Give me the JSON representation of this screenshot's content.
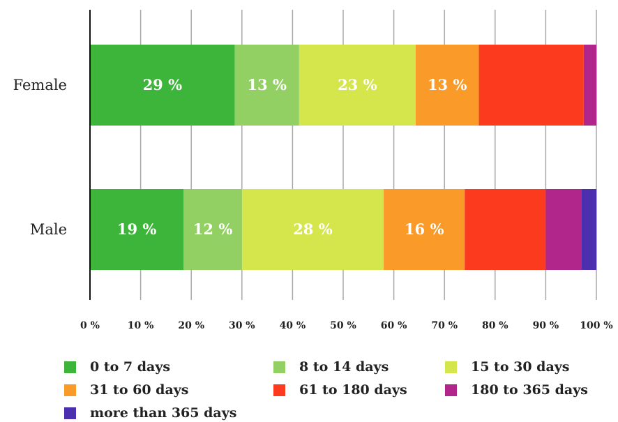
{
  "chart_data": {
    "type": "bar",
    "orientation": "horizontal",
    "stacked": true,
    "title": "",
    "xlabel": "",
    "ylabel": "",
    "xlim": [
      0,
      100
    ],
    "x_ticks": [
      "0 %",
      "10 %",
      "20 %",
      "30 %",
      "40 %",
      "50 %",
      "60 %",
      "70 %",
      "80 %",
      "90 %",
      "100 %"
    ],
    "categories": [
      "Female",
      "Male"
    ],
    "series": [
      {
        "name": "0 to 7 days",
        "color": "#3db53a",
        "values": [
          28.6,
          18.5
        ],
        "labels": [
          "29 %",
          "19 %"
        ]
      },
      {
        "name": "8 to 14 days",
        "color": "#93d064",
        "values": [
          12.7,
          11.5
        ],
        "labels": [
          "13 %",
          "12 %"
        ]
      },
      {
        "name": "15 to 30 days",
        "color": "#d4e64b",
        "values": [
          23.0,
          28.0
        ],
        "labels": [
          "23 %",
          "28 %"
        ]
      },
      {
        "name": "31 to 60 days",
        "color": "#f99a29",
        "values": [
          12.5,
          16.0
        ],
        "labels": [
          "13 %",
          "16 %"
        ]
      },
      {
        "name": "61 to 180 days",
        "color": "#fb3a1e",
        "values": [
          20.7,
          16.0
        ],
        "labels": [
          "",
          ""
        ]
      },
      {
        "name": "180 to 365 days",
        "color": "#b0268a",
        "values": [
          2.5,
          7.0
        ],
        "labels": [
          "",
          ""
        ]
      },
      {
        "name": "more than 365 days",
        "color": "#4b2fae",
        "values": [
          0.0,
          3.0
        ],
        "labels": [
          "",
          ""
        ]
      }
    ],
    "grid": true,
    "legend_position": "bottom"
  }
}
